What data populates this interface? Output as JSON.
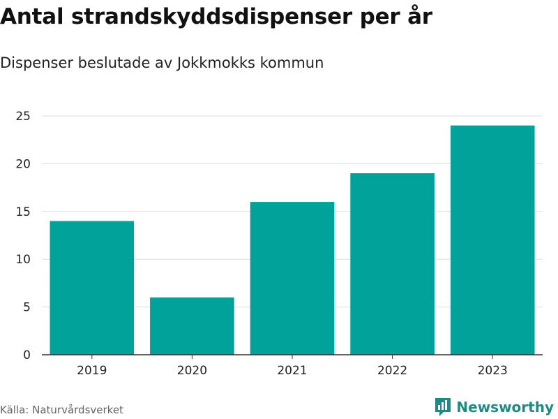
{
  "chart_data": {
    "type": "bar",
    "title": "Antal strandskyddsdispenser per år",
    "subtitle": "Dispenser beslutade av Jokkmokks kommun",
    "categories": [
      "2019",
      "2020",
      "2021",
      "2022",
      "2023"
    ],
    "values": [
      14,
      6,
      16,
      19,
      24
    ],
    "xlabel": "",
    "ylabel": "",
    "ylim": [
      0,
      25
    ],
    "yticks": [
      0,
      5,
      10,
      15,
      20,
      25
    ],
    "grid": true,
    "bar_color": "#00a29a"
  },
  "footer": {
    "source": "Källa: Naturvårdsverket",
    "brand": "Newsworthy",
    "brand_color": "#1f8a85"
  }
}
